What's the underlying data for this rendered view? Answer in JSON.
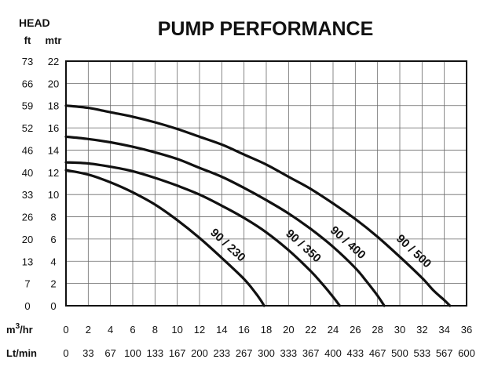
{
  "chart_data": {
    "type": "line",
    "title": "PUMP PERFORMANCE",
    "y_axis": {
      "heading": "HEAD",
      "left_unit": "ft",
      "right_unit": "mtr",
      "ft_ticks": [
        "73",
        "66",
        "59",
        "52",
        "46",
        "40",
        "33",
        "26",
        "20",
        "13",
        "7",
        "0"
      ],
      "mtr_ticks": [
        "22",
        "20",
        "18",
        "16",
        "14",
        "12",
        "10",
        "8",
        "6",
        "4",
        "2",
        "0"
      ],
      "ylim": [
        0,
        22
      ]
    },
    "x_axis": {
      "primary_unit": "m³/hr",
      "primary_unit_base": "m",
      "primary_unit_sup": "3",
      "primary_unit_suffix": "/hr",
      "secondary_unit": "Lt/min",
      "ticks": [
        "0",
        "2",
        "4",
        "6",
        "8",
        "10",
        "12",
        "14",
        "16",
        "18",
        "20",
        "22",
        "24",
        "26",
        "28",
        "30",
        "32",
        "34",
        "36"
      ],
      "lt_ticks": [
        "0",
        "33",
        "67",
        "100",
        "133",
        "167",
        "200",
        "233",
        "267",
        "300",
        "333",
        "367",
        "400",
        "433",
        "467",
        "500",
        "533",
        "567",
        "600"
      ],
      "xlim": [
        0,
        36
      ]
    },
    "grid": true,
    "series": [
      {
        "name": "90 / 230",
        "x": [
          0,
          2,
          4,
          6,
          8,
          10,
          12,
          14,
          16,
          17,
          17.5,
          17.8
        ],
        "y": [
          12.2,
          11.8,
          11.1,
          10.2,
          9.1,
          7.7,
          6.1,
          4.3,
          2.4,
          1.2,
          0.5,
          0
        ]
      },
      {
        "name": "90 / 350",
        "x": [
          0,
          2,
          4,
          6,
          8,
          10,
          12,
          14,
          16,
          18,
          20,
          22,
          23,
          24,
          24.6
        ],
        "y": [
          12.9,
          12.8,
          12.5,
          12.1,
          11.5,
          10.8,
          10.0,
          9.0,
          7.9,
          6.6,
          5.0,
          3.1,
          2.0,
          0.8,
          0
        ]
      },
      {
        "name": "90 / 400",
        "x": [
          0,
          2,
          4,
          6,
          8,
          10,
          12,
          14,
          16,
          18,
          20,
          22,
          24,
          26,
          27,
          28,
          28.6
        ],
        "y": [
          15.2,
          15.0,
          14.7,
          14.3,
          13.8,
          13.2,
          12.4,
          11.6,
          10.6,
          9.5,
          8.3,
          6.9,
          5.3,
          3.4,
          2.2,
          0.9,
          0
        ]
      },
      {
        "name": "90 / 500",
        "x": [
          0,
          2,
          4,
          6,
          8,
          10,
          12,
          14,
          16,
          18,
          20,
          22,
          24,
          26,
          28,
          30,
          32,
          33,
          34,
          34.5
        ],
        "y": [
          18.0,
          17.8,
          17.4,
          17.0,
          16.5,
          15.9,
          15.2,
          14.5,
          13.6,
          12.7,
          11.6,
          10.5,
          9.2,
          7.8,
          6.2,
          4.4,
          2.5,
          1.4,
          0.5,
          0
        ]
      }
    ]
  }
}
